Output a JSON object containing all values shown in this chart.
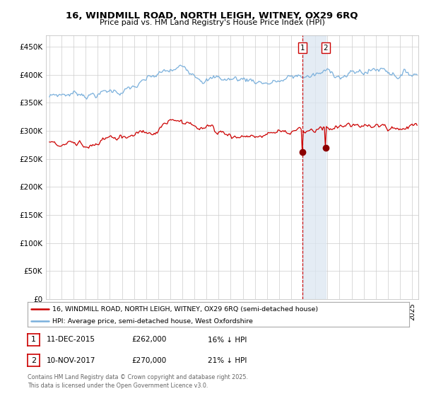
{
  "title1": "16, WINDMILL ROAD, NORTH LEIGH, WITNEY, OX29 6RQ",
  "title2": "Price paid vs. HM Land Registry's House Price Index (HPI)",
  "ylabel_ticks": [
    "£0",
    "£50K",
    "£100K",
    "£150K",
    "£200K",
    "£250K",
    "£300K",
    "£350K",
    "£400K",
    "£450K"
  ],
  "ytick_vals": [
    0,
    50000,
    100000,
    150000,
    200000,
    250000,
    300000,
    350000,
    400000,
    450000
  ],
  "ylim": [
    0,
    470000
  ],
  "xlim_start": 1994.7,
  "xlim_end": 2025.5,
  "sale1_date": 2015.94,
  "sale1_price": 262000,
  "sale2_date": 2017.86,
  "sale2_price": 270000,
  "hpi_line_color": "#7ab0dc",
  "price_line_color": "#cc0000",
  "sale_dot_color": "#8b0000",
  "vertical_line_color": "#cc0000",
  "shade_color": "#dce6f1",
  "grid_color": "#cccccc",
  "background_color": "#ffffff",
  "legend1_label": "16, WINDMILL ROAD, NORTH LEIGH, WITNEY, OX29 6RQ (semi-detached house)",
  "legend2_label": "HPI: Average price, semi-detached house, West Oxfordshire",
  "footnote": "Contains HM Land Registry data © Crown copyright and database right 2025.\nThis data is licensed under the Open Government Licence v3.0.",
  "table_row1": [
    "1",
    "11-DEC-2015",
    "£262,000",
    "16% ↓ HPI"
  ],
  "table_row2": [
    "2",
    "10-NOV-2017",
    "£270,000",
    "21% ↓ HPI"
  ]
}
